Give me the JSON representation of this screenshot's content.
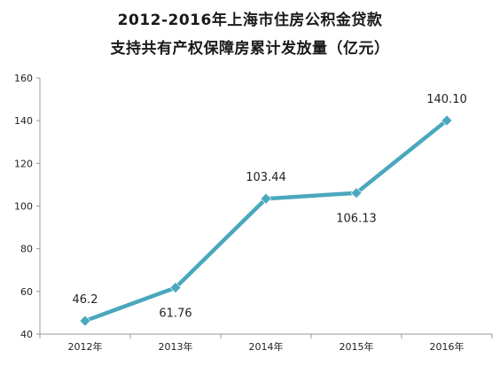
{
  "chart_data": {
    "type": "line",
    "title": "2012-2016年上海市住房公积金贷款",
    "subtitle": "支持共有产权保障房累计发放量（亿元）",
    "categories": [
      "2012年",
      "2013年",
      "2014年",
      "2015年",
      "2016年"
    ],
    "series": [
      {
        "values": [
          46.2,
          61.76,
          103.44,
          106.13,
          140.1
        ],
        "labels": [
          "46.2",
          "61.76",
          "103.44",
          "106.13",
          "140.10"
        ]
      }
    ],
    "ylim": [
      40,
      160
    ],
    "yticks": [
      "40",
      "60",
      "80",
      "100",
      "120",
      "140",
      "160"
    ],
    "grid": false,
    "legend": "none",
    "colors": {
      "line": "#4aa8bd",
      "marker": "#4aa8bd",
      "axis": "#999999"
    }
  }
}
